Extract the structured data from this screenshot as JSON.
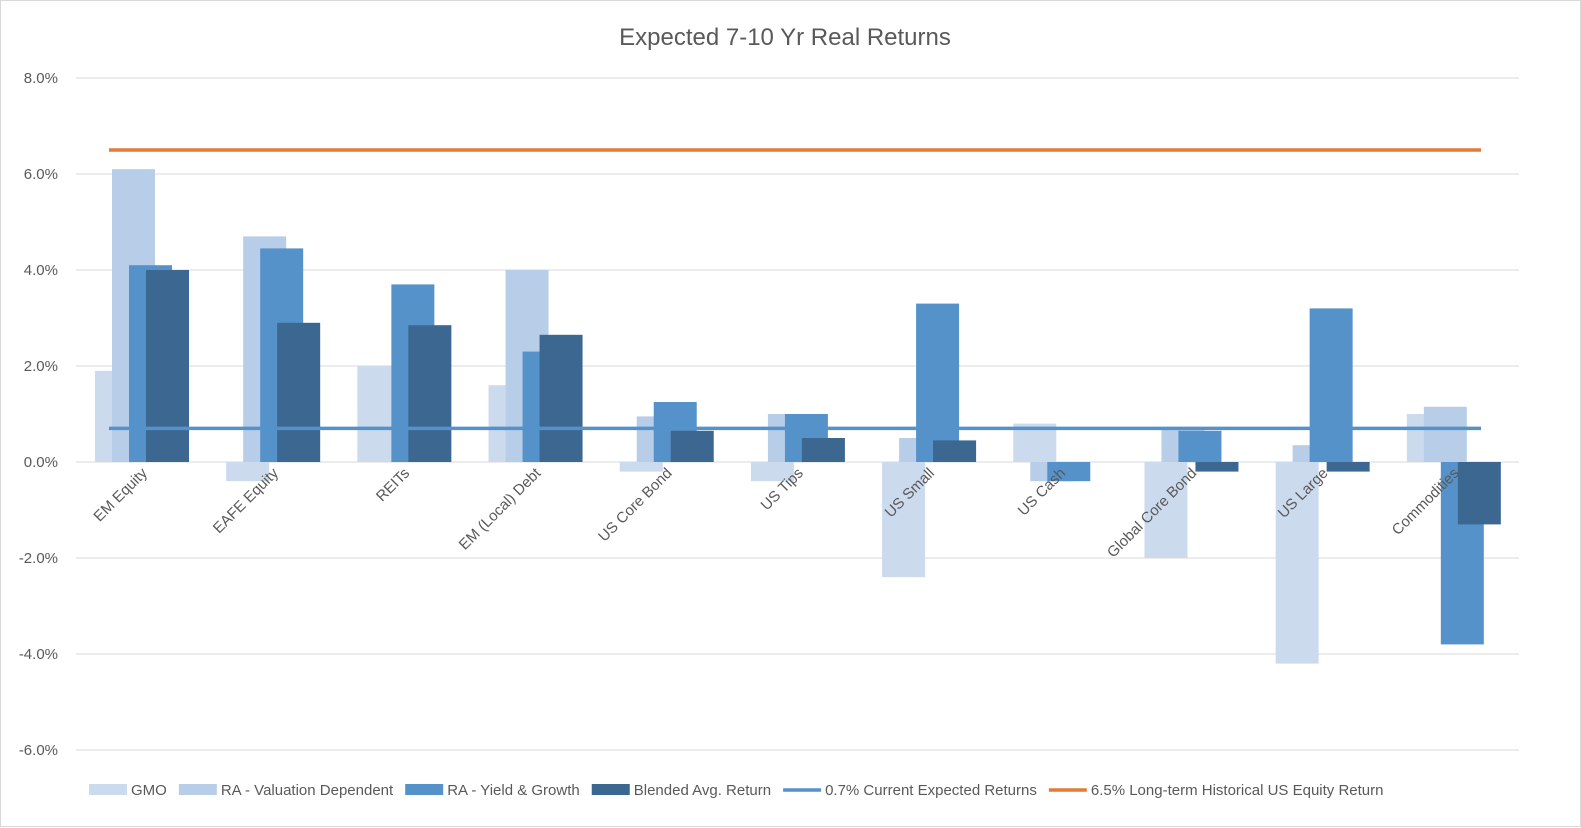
{
  "chart_data": {
    "type": "bar",
    "title": "Expected 7-10 Yr Real Returns",
    "xlabel": "",
    "ylabel": "",
    "ylim": [
      -6.0,
      8.0
    ],
    "yticks": [
      "8.0%",
      "6.0%",
      "4.0%",
      "2.0%",
      "0.0%",
      "-2.0%",
      "-4.0%",
      "-6.0%"
    ],
    "ytick_values": [
      8,
      6,
      4,
      2,
      0,
      -2,
      -4,
      -6
    ],
    "grid": true,
    "legend_position": "bottom",
    "categories": [
      "EM Equity",
      "EAFE Equity",
      "REITs",
      "EM (Local) Debt",
      "US Core Bond",
      "US Tips",
      "US Small",
      "US Cash",
      "Global Core Bond",
      "US Large",
      "Commodities"
    ],
    "series": [
      {
        "name": "GMO",
        "color": "#ccdaee",
        "values": [
          1.9,
          -0.4,
          2.0,
          1.6,
          -0.2,
          -0.4,
          -2.4,
          0.8,
          -2.0,
          -4.2,
          1.0
        ]
      },
      {
        "name": "RA - Valuation Dependent",
        "color": "#b8cde8",
        "values": [
          6.1,
          4.7,
          0.0,
          4.0,
          0.95,
          1.0,
          0.5,
          -0.4,
          0.7,
          0.35,
          1.15
        ]
      },
      {
        "name": "RA - Yield & Growth",
        "color": "#5592ca",
        "values": [
          4.1,
          4.45,
          3.7,
          2.3,
          1.25,
          1.0,
          3.3,
          -0.4,
          0.65,
          3.2,
          -3.8
        ]
      },
      {
        "name": "Blended Avg. Return",
        "color": "#3c6790",
        "values": [
          4.0,
          2.9,
          2.85,
          2.65,
          0.65,
          0.5,
          0.45,
          0.0,
          -0.2,
          -0.2,
          -1.3
        ]
      }
    ],
    "lines": [
      {
        "name": "0.7% Current Expected Returns",
        "color": "#5592ca",
        "value": 0.7
      },
      {
        "name": "6.5% Long-term Historical US Equity Return",
        "color": "#e07b39",
        "value": 6.5
      }
    ]
  }
}
